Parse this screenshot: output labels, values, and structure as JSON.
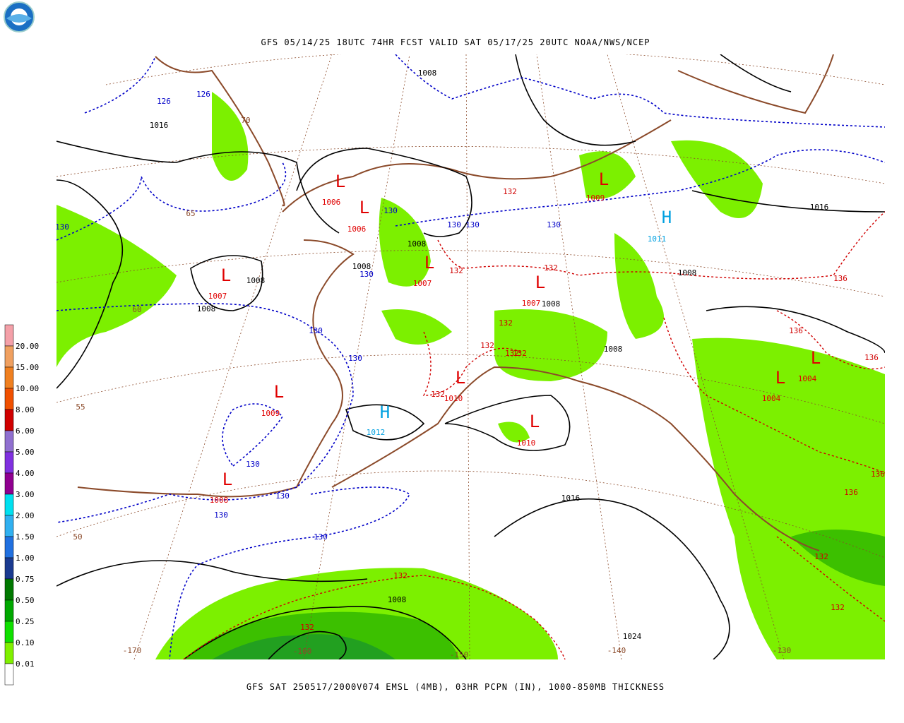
{
  "header": {
    "title": "GFS 05/14/25 18UTC 74HR FCST VALID SAT 05/17/25 20UTC NOAA/NWS/NCEP"
  },
  "footer": {
    "caption": "GFS SAT 250517/2000V074 EMSL (4MB), 03HR PCPN (IN), 1000-850MB THICKNESS"
  },
  "legend": {
    "labels": [
      "20.00",
      "15.00",
      "10.00",
      "8.00",
      "6.00",
      "5.00",
      "4.00",
      "3.00",
      "2.00",
      "1.50",
      "1.00",
      "0.75",
      "0.50",
      "0.25",
      "0.10",
      "0.01"
    ]
  },
  "pressure_centers": [
    {
      "symbol": "L",
      "value": 1006
    },
    {
      "symbol": "L",
      "value": 1006
    },
    {
      "symbol": "L",
      "value": 1007
    },
    {
      "symbol": "L",
      "value": 1007
    },
    {
      "symbol": "L",
      "value": 1007
    },
    {
      "symbol": "L",
      "value": 1009
    },
    {
      "symbol": "H",
      "value": 1011
    },
    {
      "symbol": "L",
      "value": 1009
    },
    {
      "symbol": "L",
      "value": 1010
    },
    {
      "symbol": "H",
      "value": 1012
    },
    {
      "symbol": "L",
      "value": 1010
    },
    {
      "symbol": "L",
      "value": 1008
    },
    {
      "symbol": "L",
      "value": 1004
    },
    {
      "symbol": "L",
      "value": 1004
    }
  ],
  "isobar_labels": [
    1008,
    1016,
    1008,
    1008,
    1008,
    1008,
    1008,
    1008,
    1008,
    1016,
    1016,
    1008,
    1024
  ],
  "thickness_labels_low": [
    126,
    126,
    130,
    130,
    130,
    130,
    130,
    130,
    130,
    130,
    130,
    130,
    130,
    130
  ],
  "thickness_labels_high": [
    132,
    132,
    132,
    132,
    132,
    132,
    132,
    132,
    132,
    132,
    132,
    132,
    136,
    136,
    136,
    136,
    136
  ],
  "grid_labels": [
    70,
    65,
    60,
    55,
    50,
    -170,
    -160,
    -150,
    -140,
    -130
  ]
}
